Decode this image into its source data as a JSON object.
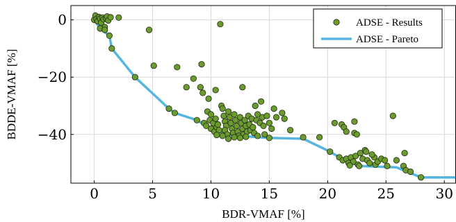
{
  "chart_data": {
    "type": "scatter",
    "xlabel": "BDR-VMAF [%]",
    "ylabel": "BDDE-VMAF [%]",
    "xlim": [
      -2,
      31
    ],
    "ylim": [
      -57,
      5
    ],
    "xticks": [
      0,
      5,
      10,
      15,
      20,
      25,
      30
    ],
    "yticks": [
      0,
      -20,
      -40
    ],
    "grid": true,
    "legend_position": "top-right",
    "colors": {
      "results": "#6b9a2f",
      "results_edge": "#1f2a0f",
      "pareto": "#56b6e0"
    },
    "series": [
      {
        "name": "ADSE - Results",
        "type": "scatter",
        "points": [
          [
            0.0,
            0.0
          ],
          [
            0.1,
            1.5
          ],
          [
            0.2,
            0.3
          ],
          [
            0.3,
            -0.5
          ],
          [
            0.4,
            1.0
          ],
          [
            0.5,
            0.5
          ],
          [
            0.6,
            -1.0
          ],
          [
            0.7,
            0.8
          ],
          [
            0.8,
            0.2
          ],
          [
            0.9,
            -2.5
          ],
          [
            1.0,
            0.6
          ],
          [
            1.1,
            1.2
          ],
          [
            1.2,
            -0.2
          ],
          [
            1.4,
            0.9
          ],
          [
            2.1,
            0.8
          ],
          [
            0.5,
            -3.0
          ],
          [
            0.9,
            -3.5
          ],
          [
            1.3,
            -5.5
          ],
          [
            1.5,
            -10.0
          ],
          [
            4.7,
            -3.5
          ],
          [
            10.8,
            -1.5
          ],
          [
            3.5,
            -20.0
          ],
          [
            5.1,
            -16.0
          ],
          [
            7.1,
            -16.5
          ],
          [
            8.5,
            -20.5
          ],
          [
            9.2,
            -15.5
          ],
          [
            7.9,
            -23.5
          ],
          [
            9.1,
            -23.5
          ],
          [
            10.4,
            -24.5
          ],
          [
            9.3,
            -25.5
          ],
          [
            12.7,
            -23.5
          ],
          [
            9.8,
            -27.5
          ],
          [
            6.4,
            -31.0
          ],
          [
            6.9,
            -32.5
          ],
          [
            8.8,
            -35.0
          ],
          [
            9.4,
            -36.0
          ],
          [
            9.6,
            -37.0
          ],
          [
            9.7,
            -32.0
          ],
          [
            10.0,
            -33.0
          ],
          [
            9.9,
            -35.0
          ],
          [
            10.2,
            -36.0
          ],
          [
            10.0,
            -38.0
          ],
          [
            10.3,
            -39.0
          ],
          [
            10.5,
            -37.5
          ],
          [
            10.4,
            -34.5
          ],
          [
            10.6,
            -36.5
          ],
          [
            10.7,
            -38.5
          ],
          [
            10.9,
            -30.0
          ],
          [
            11.0,
            -31.0
          ],
          [
            11.1,
            -33.5
          ],
          [
            11.2,
            -35.5
          ],
          [
            11.3,
            -37.0
          ],
          [
            11.2,
            -38.5
          ],
          [
            11.4,
            -40.0
          ],
          [
            11.5,
            -32.0
          ],
          [
            11.6,
            -34.0
          ],
          [
            11.7,
            -36.0
          ],
          [
            11.8,
            -38.0
          ],
          [
            11.9,
            -39.5
          ],
          [
            12.0,
            -33.0
          ],
          [
            12.1,
            -35.0
          ],
          [
            12.2,
            -37.0
          ],
          [
            12.3,
            -39.0
          ],
          [
            12.4,
            -40.5
          ],
          [
            12.5,
            -34.0
          ],
          [
            12.6,
            -36.0
          ],
          [
            12.7,
            -38.0
          ],
          [
            12.8,
            -40.0
          ],
          [
            12.9,
            -35.0
          ],
          [
            13.0,
            -37.0
          ],
          [
            13.1,
            -39.0
          ],
          [
            13.2,
            -33.5
          ],
          [
            13.3,
            -36.5
          ],
          [
            13.4,
            -38.5
          ],
          [
            13.5,
            -34.5
          ],
          [
            13.6,
            -37.5
          ],
          [
            13.7,
            -39.5
          ],
          [
            13.8,
            -30.0
          ],
          [
            13.9,
            -35.0
          ],
          [
            14.0,
            -33.0
          ],
          [
            14.2,
            -36.0
          ],
          [
            14.3,
            -28.5
          ],
          [
            14.4,
            -34.0
          ],
          [
            14.5,
            -37.0
          ],
          [
            14.6,
            -40.0
          ],
          [
            14.8,
            -33.5
          ],
          [
            15.0,
            -36.0
          ],
          [
            15.2,
            -38.0
          ],
          [
            15.4,
            -31.0
          ],
          [
            15.6,
            -34.0
          ],
          [
            16.1,
            -32.5
          ],
          [
            16.3,
            -34.5
          ],
          [
            16.8,
            -38.5
          ],
          [
            17.9,
            -41.0
          ],
          [
            19.3,
            -41.0
          ],
          [
            20.6,
            -36.0
          ],
          [
            21.2,
            -36.5
          ],
          [
            21.4,
            -37.5
          ],
          [
            21.6,
            -39.0
          ],
          [
            22.3,
            -35.5
          ],
          [
            22.3,
            -39.5
          ],
          [
            22.5,
            -40.0
          ],
          [
            25.6,
            -33.5
          ],
          [
            26.6,
            -46.5
          ],
          [
            25.9,
            -49.0
          ],
          [
            26.5,
            -51.0
          ],
          [
            26.7,
            -52.5
          ],
          [
            27.1,
            -53.0
          ],
          [
            28.0,
            -55.0
          ],
          [
            24.0,
            -48.0
          ],
          [
            20.2,
            -46.0
          ],
          [
            21.0,
            -48.0
          ],
          [
            21.3,
            -49.0
          ],
          [
            21.6,
            -48.5
          ],
          [
            21.8,
            -50.0
          ],
          [
            22.0,
            -48.0
          ],
          [
            22.2,
            -49.5
          ],
          [
            22.4,
            -47.5
          ],
          [
            22.6,
            -50.5
          ],
          [
            22.8,
            -46.5
          ],
          [
            23.0,
            -48.5
          ],
          [
            23.2,
            -45.5
          ],
          [
            23.4,
            -49.0
          ],
          [
            23.6,
            -50.0
          ],
          [
            23.8,
            -47.0
          ],
          [
            24.1,
            -50.5
          ],
          [
            24.3,
            -49.5
          ],
          [
            24.6,
            -48.5
          ],
          [
            24.9,
            -49.0
          ],
          [
            25.1,
            -51.0
          ],
          [
            23.3,
            -46.0
          ],
          [
            22.7,
            -51.0
          ],
          [
            21.9,
            -50.8
          ],
          [
            12.0,
            -41.0
          ],
          [
            11.5,
            -41.5
          ],
          [
            12.5,
            -41.2
          ],
          [
            13.0,
            -40.8
          ],
          [
            11.0,
            -40.5
          ],
          [
            10.5,
            -40.2
          ],
          [
            14.0,
            -40.5
          ],
          [
            15.0,
            -41.2
          ]
        ]
      },
      {
        "name": "ADSE - Pareto",
        "type": "line",
        "points": [
          [
            0.0,
            0.0
          ],
          [
            0.5,
            -3.0
          ],
          [
            1.3,
            -5.5
          ],
          [
            1.5,
            -10.0
          ],
          [
            3.5,
            -20.0
          ],
          [
            6.4,
            -31.0
          ],
          [
            6.9,
            -32.5
          ],
          [
            8.8,
            -35.0
          ],
          [
            10.0,
            -38.0
          ],
          [
            11.4,
            -40.0
          ],
          [
            12.4,
            -40.5
          ],
          [
            15.0,
            -41.2
          ],
          [
            17.9,
            -41.5
          ],
          [
            20.2,
            -46.0
          ],
          [
            21.0,
            -48.0
          ],
          [
            22.7,
            -51.0
          ],
          [
            25.9,
            -51.5
          ],
          [
            28.0,
            -55.0
          ],
          [
            31.0,
            -55.0
          ]
        ]
      }
    ]
  }
}
